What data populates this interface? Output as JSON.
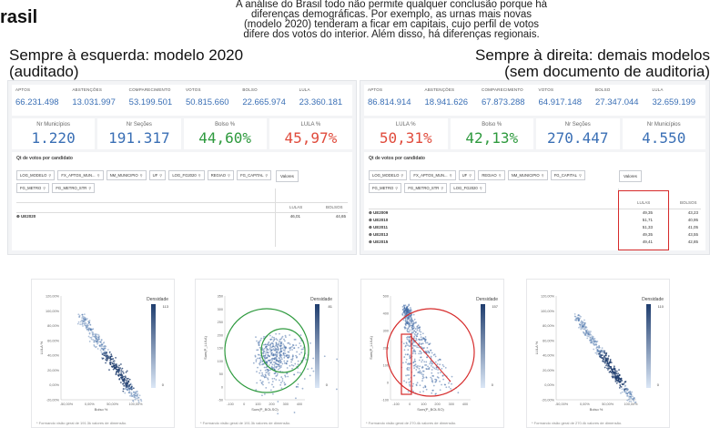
{
  "page": {
    "heading": "rasil",
    "intro_lines": [
      "A análise do Brasil todo não permite qualquer conclusão porque há",
      "diferenças demográficas. Por exemplo, as urnas mais novas",
      "(modelo 2020) tenderam a ficar em capitais, cujo perfil de votos",
      "difere dos votos do interior. Além disso, há diferenças regionais."
    ]
  },
  "left_panel": {
    "heading_line1": "Sempre à esquerda: modelo 2020",
    "heading_line2": "(auditado)",
    "kpis": [
      {
        "label": "APTOS",
        "value": "66.231.498"
      },
      {
        "label": "ABSTENÇÕES",
        "value": "13.031.997"
      },
      {
        "label": "COMPARECIMENTO",
        "value": "53.199.501"
      },
      {
        "label": "VOTOS",
        "value": "50.815.660"
      },
      {
        "label": "BOLSO",
        "value": "22.665.974"
      },
      {
        "label": "LULA",
        "value": "23.360.181"
      }
    ],
    "cards": [
      {
        "label": "Nr Municípios",
        "value": "1.220",
        "color": "#3a6fb5"
      },
      {
        "label": "Nr Seções",
        "value": "191.317",
        "color": "#3a6fb5"
      },
      {
        "label": "Bolso %",
        "value": "44,60%",
        "color": "#2e9a3e"
      },
      {
        "label": "LULA %",
        "value": "45,97%",
        "color": "#e04b3c"
      }
    ],
    "pivot": {
      "title": "Qt de votos por candidato",
      "chips": [
        "LOG_MODELO",
        "FX_APTOS_MUN...",
        "NM_MUNICIPIO",
        "UF",
        "LOG_FG2020",
        "REGIAO",
        "FG_CAPITAL",
        "FG_METRO",
        "FG_METRO_STR"
      ],
      "values_button": "Valores",
      "col_lula": "LULAS",
      "col_bolso": "BOLSOS",
      "rows": [
        {
          "label": "UE2020",
          "lula": "46,01",
          "bolso": "44,65"
        }
      ]
    },
    "plot1": {
      "legend_title": "Densidade",
      "legend_max": "113",
      "legend_min": "0",
      "ylabel": "LULA %",
      "xlabel": "Bolso %",
      "yticks": [
        "120,00%",
        "100,00%",
        "80,00%",
        "60,00%",
        "40,00%",
        "20,00%",
        "0,00%",
        "-20,00%"
      ],
      "xticks": [
        "-50,00%",
        "0,00%",
        "50,00%",
        "100,00%"
      ],
      "footnote": "* Formando visão geral de 191.3k valores de dimensão."
    },
    "plot2": {
      "legend_title": "Densidade",
      "legend_max": "81",
      "legend_min": "0",
      "ylabel": "Sum(P_LULA)",
      "xlabel": "Sum(P_BOLSO)",
      "yticks": [
        "350",
        "300",
        "250",
        "200",
        "150",
        "100",
        "50",
        "0",
        "-50"
      ],
      "xticks": [
        "-100",
        "0",
        "100",
        "200",
        "300",
        "400"
      ],
      "footnote": "* Formando visão geral de 191.3k valores de dimensão."
    }
  },
  "right_panel": {
    "heading_line1": "Sempre à direita: demais modelos",
    "heading_line2": "(sem documento de auditoria)",
    "kpis": [
      {
        "label": "APTOS",
        "value": "86.814.914"
      },
      {
        "label": "ABSTENÇÕES",
        "value": "18.941.626"
      },
      {
        "label": "COMPARECIMENTO",
        "value": "67.873.288"
      },
      {
        "label": "VOTOS",
        "value": "64.917.148"
      },
      {
        "label": "BOLSO",
        "value": "27.347.044"
      },
      {
        "label": "LULA",
        "value": "32.659.199"
      }
    ],
    "cards": [
      {
        "label": "LULA %",
        "value": "50,31%",
        "color": "#e04b3c"
      },
      {
        "label": "Bolso %",
        "value": "42,13%",
        "color": "#2e9a3e"
      },
      {
        "label": "Nr Seções",
        "value": "270.447",
        "color": "#3a6fb5"
      },
      {
        "label": "Nr Municípios",
        "value": "4.550",
        "color": "#3a6fb5"
      }
    ],
    "pivot": {
      "title": "Qt de votos por candidato",
      "chips": [
        "LOG_MODELO",
        "FX_APTOS_MUN...",
        "UF",
        "REGIAO",
        "NM_MUNICIPIO",
        "FG_CAPITAL",
        "FG_METRO",
        "FG_METRO_STR",
        "LOG_FG2020"
      ],
      "values_button": "Valores",
      "col_lula": "LULAS",
      "col_bolso": "BOLSOS",
      "rows": [
        {
          "label": "UE2009",
          "lula": "49,35",
          "bolso": "43,23"
        },
        {
          "label": "UE2010",
          "lula": "51,71",
          "bolso": "40,95"
        },
        {
          "label": "UE2011",
          "lula": "51,33",
          "bolso": "41,05"
        },
        {
          "label": "UE2013",
          "lula": "49,35",
          "bolso": "43,55"
        },
        {
          "label": "UE2015",
          "lula": "49,41",
          "bolso": "42,85"
        }
      ]
    },
    "plot3": {
      "legend_title": "Densidade",
      "legend_max": "157",
      "legend_min": "0",
      "ylabel": "Sum(P_LULA)",
      "xlabel": "Sum(P_BOLSO)",
      "yticks": [
        "500",
        "400",
        "300",
        "200",
        "100",
        "0",
        "-100"
      ],
      "xticks": [
        "-100",
        "0",
        "100",
        "200",
        "300",
        "400"
      ],
      "footnote": "* Formando visão geral de 270.4k valores de dimensão."
    },
    "plot4": {
      "legend_title": "Densidade",
      "legend_max": "110",
      "legend_min": "0",
      "ylabel": "LULA %",
      "xlabel": "Bolso %",
      "yticks": [
        "120,00%",
        "100,00%",
        "80,00%",
        "60,00%",
        "40,00%",
        "20,00%",
        "0,00%",
        "-20,00%"
      ],
      "xticks": [
        "-50,00%",
        "0,00%",
        "50,00%",
        "100,00%"
      ],
      "footnote": "* Formando visão geral de 270.4k valores de dimensão."
    }
  },
  "colors": {
    "accent_blue": "#3a6fb5",
    "accent_green": "#2e9a3e",
    "accent_red": "#e04b3c",
    "annotation_red": "#d62a2a",
    "annotation_green": "#2e9a3e",
    "density_dark": "#1f3d6e"
  }
}
